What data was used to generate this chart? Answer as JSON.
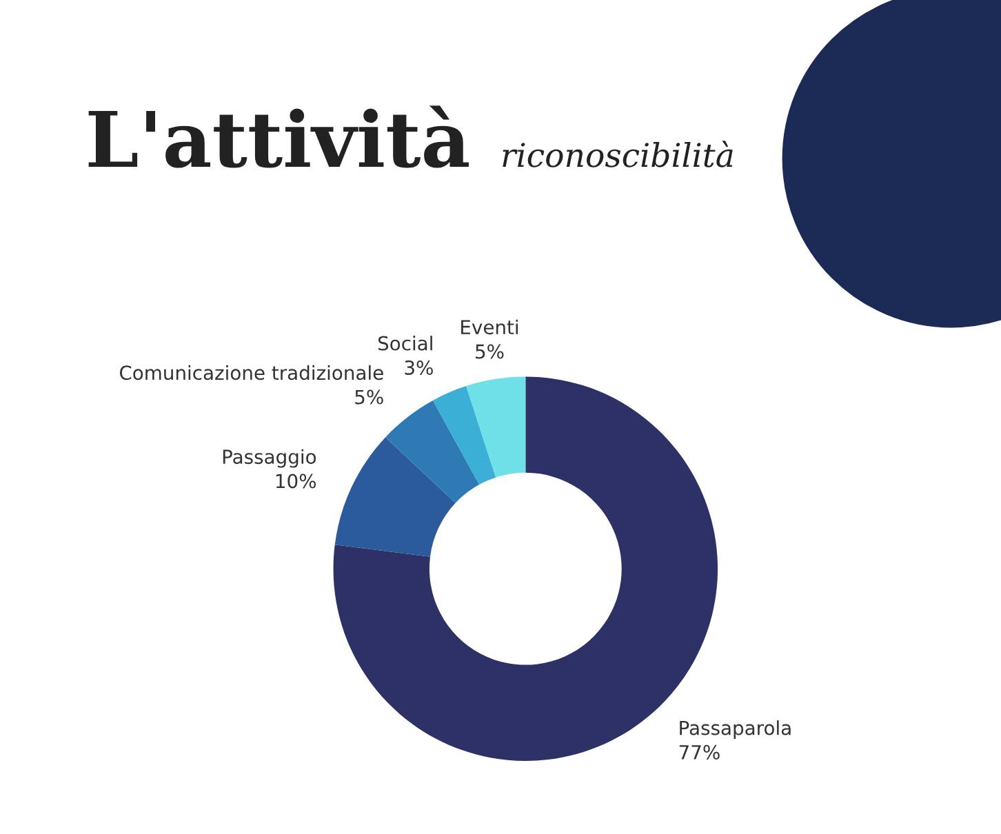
{
  "chart_data": {
    "type": "donut",
    "title": "L'attività",
    "subtitle": "riconoscibilità",
    "categories": [
      "Passaparola",
      "Passaggio",
      "Comunicazione tradizionale",
      "Social",
      "Eventi"
    ],
    "values": [
      77,
      10,
      5,
      3,
      5
    ],
    "value_labels": [
      "77%",
      "10%",
      "5%",
      "3%",
      "5%"
    ],
    "colors": [
      "#2e3166",
      "#2b5b9c",
      "#2e7ab5",
      "#3bafd6",
      "#6fe0e8"
    ]
  }
}
